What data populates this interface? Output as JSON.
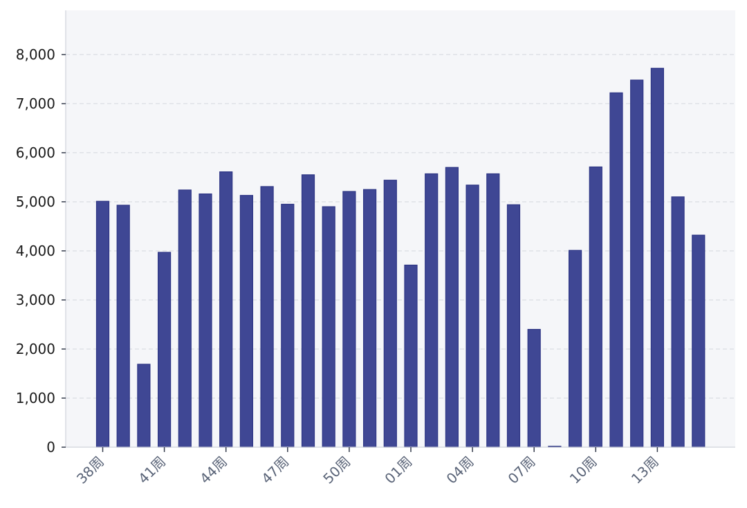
{
  "chart_data": {
    "type": "bar",
    "title": "",
    "xlabel": "",
    "ylabel": "",
    "ylim": [
      0,
      8900
    ],
    "yticks": [
      0,
      1000,
      2000,
      3000,
      4000,
      5000,
      6000,
      7000,
      8000
    ],
    "ytick_labels": [
      "0",
      "1,000",
      "2,000",
      "3,000",
      "4,000",
      "5,000",
      "6,000",
      "7,000",
      "8,000"
    ],
    "xtick_labels": [
      "38周",
      "41周",
      "44周",
      "47周",
      "50周",
      "01周",
      "04周",
      "07周",
      "10周",
      "13周"
    ],
    "grid": true,
    "bar_color": "#3f4794",
    "plot_background": "#f5f6f9",
    "values": [
      5010,
      4930,
      1690,
      3970,
      5240,
      5160,
      5610,
      5130,
      5310,
      4950,
      5550,
      4900,
      5210,
      5250,
      5440,
      3710,
      5570,
      5700,
      5340,
      5570,
      4940,
      2400,
      20,
      4010,
      5710,
      7220,
      7480,
      7720,
      5100,
      4320
    ]
  }
}
